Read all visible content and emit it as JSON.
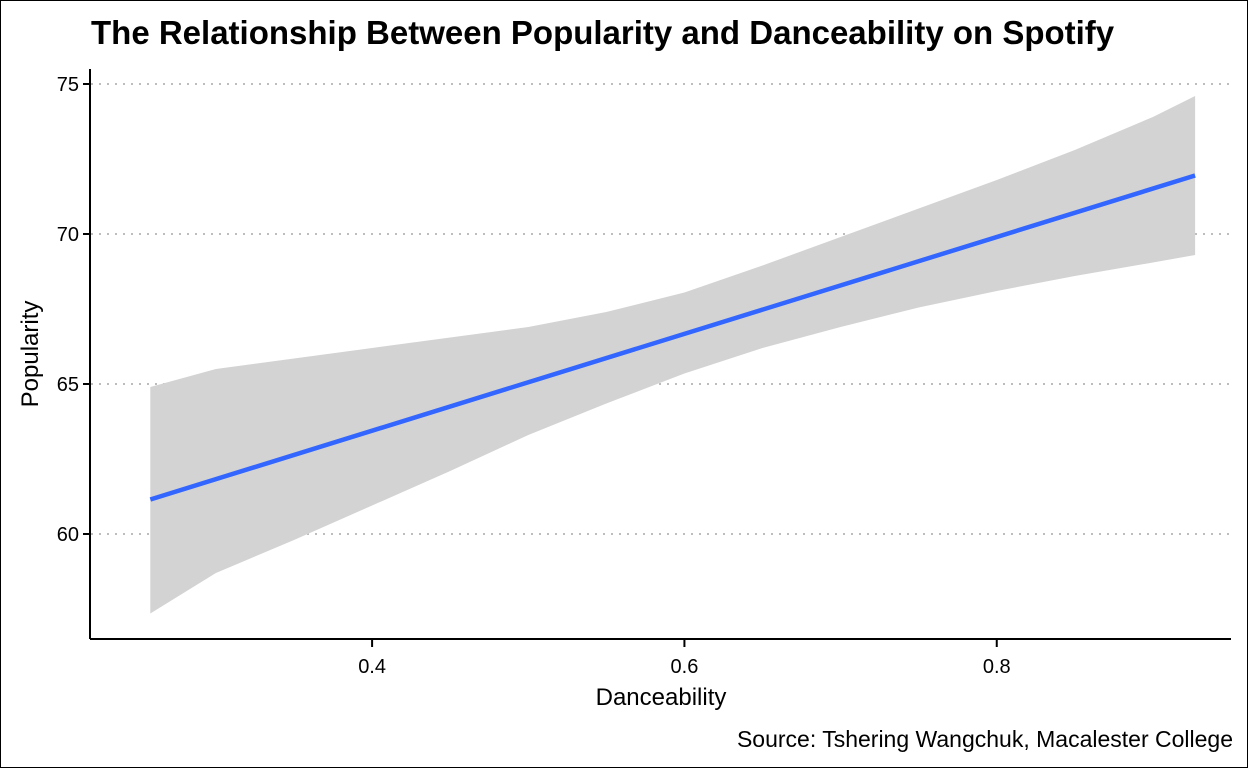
{
  "chart_data": {
    "type": "line",
    "title": "The Relationship Between Popularity and Danceability on Spotify",
    "xlabel": "Danceability",
    "ylabel": "Popularity",
    "caption": "Source: Tshering Wangchuk, Macalester College",
    "xlim": [
      0.22,
      0.95
    ],
    "ylim": [
      56.5,
      75.5
    ],
    "x_ticks": [
      0.4,
      0.6,
      0.8
    ],
    "x_tick_labels": [
      "0.4",
      "0.6",
      "0.8"
    ],
    "y_ticks": [
      60,
      65,
      70,
      75
    ],
    "y_tick_labels": [
      "60",
      "65",
      "70",
      "75"
    ],
    "grid": "horizontal dotted",
    "series": [
      {
        "kind": "linear fit",
        "x": [
          0.258,
          0.927
        ],
        "y": [
          61.15,
          71.95
        ],
        "color": "#3366ff"
      },
      {
        "kind": "confidence band",
        "x": [
          0.258,
          0.3,
          0.35,
          0.4,
          0.45,
          0.5,
          0.55,
          0.6,
          0.65,
          0.7,
          0.75,
          0.8,
          0.85,
          0.9,
          0.927
        ],
        "lower": [
          57.35,
          58.7,
          59.8,
          60.95,
          62.1,
          63.3,
          64.35,
          65.35,
          66.2,
          66.9,
          67.55,
          68.1,
          68.6,
          69.05,
          69.3
        ],
        "upper": [
          64.9,
          65.5,
          65.85,
          66.2,
          66.55,
          66.9,
          67.4,
          68.05,
          68.95,
          69.9,
          70.85,
          71.8,
          72.8,
          73.9,
          74.6
        ],
        "color": "#d3d3d3"
      }
    ]
  }
}
